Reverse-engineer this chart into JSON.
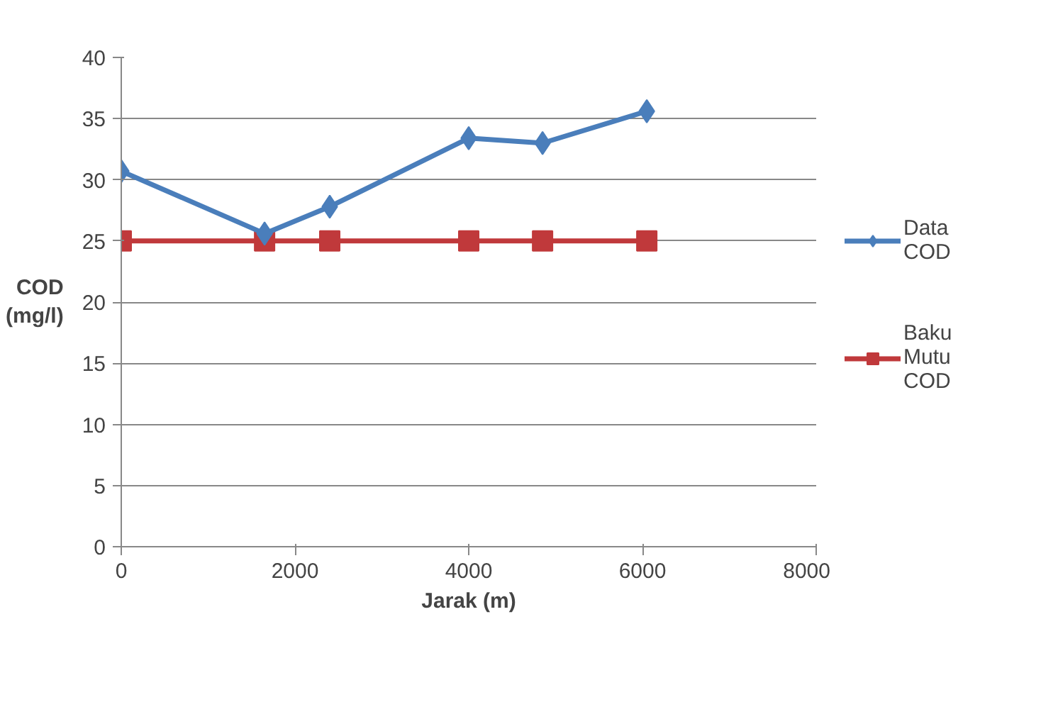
{
  "chart_data": {
    "type": "line",
    "xlabel": "Jarak (m)",
    "ylabel": "COD (mg/l)",
    "xlim": [
      0,
      8000
    ],
    "xticks": [
      0,
      2000,
      4000,
      6000,
      8000
    ],
    "ylim": [
      0,
      40
    ],
    "yticks": [
      0,
      5,
      10,
      15,
      20,
      25,
      30,
      35,
      40
    ],
    "grid": "y",
    "legend": "right",
    "series": [
      {
        "name": "Data COD",
        "color": "#4a7ebb",
        "marker": "diamond",
        "x": [
          0,
          1650,
          2400,
          4000,
          4850,
          6050
        ],
        "values": [
          30.7,
          25.6,
          27.8,
          33.4,
          33.0,
          35.6
        ]
      },
      {
        "name": "Baku Mutu COD",
        "color": "#c0393b",
        "marker": "square",
        "x": [
          0,
          1650,
          2400,
          4000,
          4850,
          6050
        ],
        "values": [
          25,
          25,
          25,
          25,
          25,
          25
        ]
      }
    ]
  }
}
